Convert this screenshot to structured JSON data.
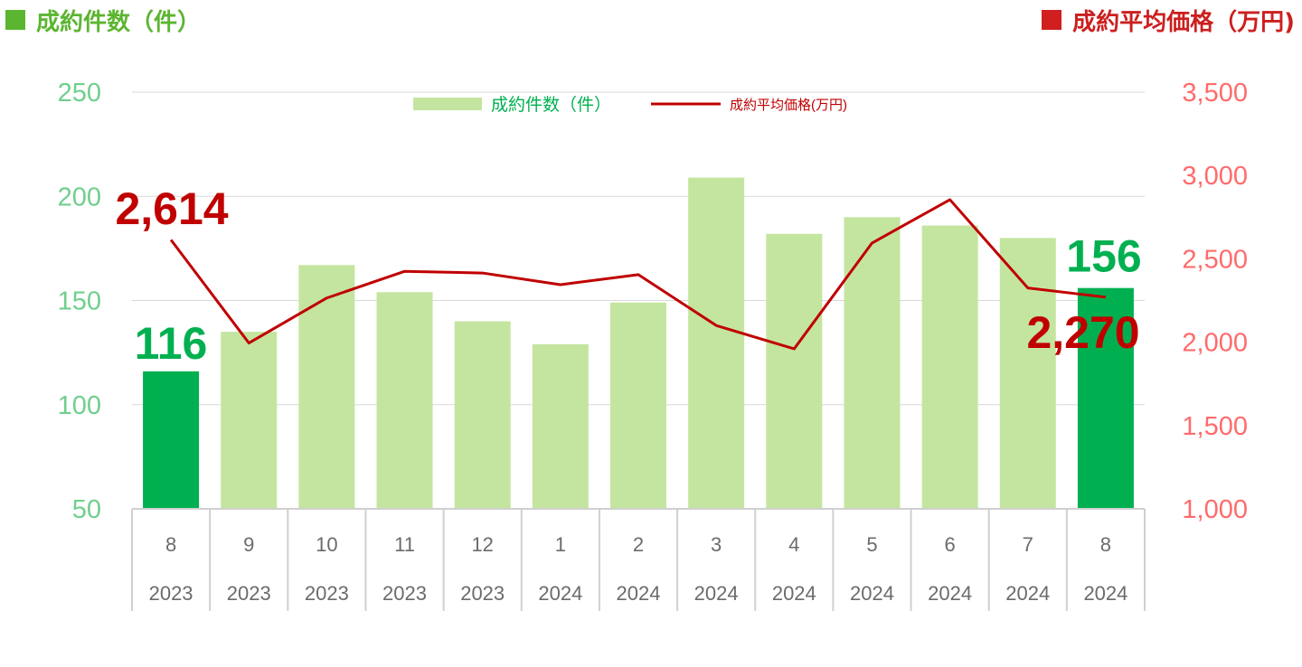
{
  "header": {
    "left_title": "成約件数（件）",
    "right_title": "成約平均価格（万円)"
  },
  "colors": {
    "bar_highlight": "#00b050",
    "bar_normal": "#c4e59f",
    "line": "#c00000",
    "left_axis": "#6fcf8e",
    "right_axis": "#ff6b6b",
    "left_header": "#5cb531",
    "right_header": "#cc1f1f",
    "grid": "#d9d9d9",
    "table_border": "#d0d0d0",
    "table_text": "#6b6b6b"
  },
  "chart_data": {
    "type": "bar",
    "categories": [
      "8",
      "9",
      "10",
      "11",
      "12",
      "1",
      "2",
      "3",
      "4",
      "5",
      "6",
      "7",
      "8"
    ],
    "years": [
      "2023",
      "2023",
      "2023",
      "2023",
      "2023",
      "2024",
      "2024",
      "2024",
      "2024",
      "2024",
      "2024",
      "2024",
      "2024"
    ],
    "highlight": [
      true,
      false,
      false,
      false,
      false,
      false,
      false,
      false,
      false,
      false,
      false,
      false,
      true
    ],
    "series": [
      {
        "name": "成約件数(件)",
        "type": "bar",
        "axis": "left",
        "values": [
          116,
          135,
          167,
          154,
          140,
          129,
          149,
          209,
          182,
          190,
          186,
          180,
          156
        ]
      },
      {
        "name": "成約平均価格(万円)",
        "type": "line",
        "axis": "right",
        "values": [
          2614,
          1995,
          2265,
          2425,
          2415,
          2345,
          2405,
          2100,
          1960,
          2595,
          2855,
          2325,
          2270
        ]
      }
    ],
    "left_axis": {
      "ylim": [
        50,
        250
      ],
      "ticks": [
        "50",
        "100",
        "150",
        "200",
        "250"
      ]
    },
    "right_axis": {
      "ylim": [
        1000,
        3500
      ],
      "ticks": [
        "1,000",
        "1,500",
        "2,000",
        "2,500",
        "3,000",
        "3,500"
      ]
    },
    "annotations": {
      "bar_first": "116",
      "bar_last": "156",
      "line_first": "2,614",
      "line_last": "2,270"
    },
    "legend": {
      "bar_label": "成約件数（件）",
      "line_label": "成約平均価格(万円)",
      "position": "top-center"
    },
    "grid": true
  }
}
